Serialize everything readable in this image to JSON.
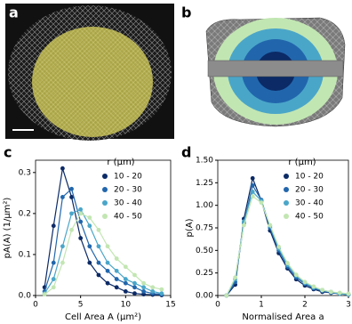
{
  "image_panels": [
    {
      "label": "a"
    },
    {
      "label": "b"
    }
  ],
  "chart_data": [
    {
      "type": "line",
      "panel_label": "c",
      "x_label": "Cell Area A (μm²)",
      "y_label": "pA(A) (1/μm²)",
      "legend_title": "r (μm)",
      "x": [
        1,
        2,
        3,
        4,
        5,
        6,
        7,
        8,
        9,
        10,
        11,
        12,
        13,
        14
      ],
      "xlim": [
        0,
        15
      ],
      "xticks": [
        0,
        5,
        10,
        15
      ],
      "ylim": [
        0,
        0.33
      ],
      "yticks": [
        {
          "value": 0,
          "label": "0.0"
        },
        0.1,
        0.2,
        0.3
      ],
      "series": [
        {
          "name": "10 - 20",
          "color": "#0b2a66",
          "values": [
            0.02,
            0.17,
            0.31,
            0.24,
            0.14,
            0.08,
            0.05,
            0.03,
            0.02,
            0.01,
            0.005,
            0.003,
            0.002,
            0.001
          ]
        },
        {
          "name": "20 - 30",
          "color": "#2166ac",
          "values": [
            0.01,
            0.08,
            0.24,
            0.26,
            0.18,
            0.12,
            0.08,
            0.06,
            0.04,
            0.03,
            0.02,
            0.01,
            0.005,
            0.003
          ]
        },
        {
          "name": "30 - 40",
          "color": "#4aa6c9",
          "values": [
            0.005,
            0.04,
            0.12,
            0.2,
            0.21,
            0.17,
            0.12,
            0.08,
            0.06,
            0.04,
            0.03,
            0.02,
            0.01,
            0.005
          ]
        },
        {
          "name": "40 - 50",
          "color": "#c2e6b2",
          "values": [
            0.003,
            0.02,
            0.08,
            0.16,
            0.2,
            0.19,
            0.16,
            0.12,
            0.09,
            0.07,
            0.05,
            0.03,
            0.02,
            0.015
          ]
        }
      ]
    },
    {
      "type": "line",
      "panel_label": "d",
      "x_label": "Normalised Area a",
      "y_label": "p(A)",
      "legend_title": "r (μm)",
      "x": [
        0.2,
        0.4,
        0.6,
        0.8,
        1.0,
        1.2,
        1.4,
        1.6,
        1.8,
        2.0,
        2.2,
        2.4,
        2.6,
        2.8,
        3.0
      ],
      "xlim": [
        0,
        3
      ],
      "xticks": [
        0,
        1,
        2,
        3
      ],
      "ylim": [
        0,
        1.5
      ],
      "yticks": [
        {
          "value": 0,
          "label": "0.00"
        },
        0.25,
        {
          "value": 0.5,
          "label": "0.50"
        },
        0.75,
        {
          "value": 1,
          "label": "1.00"
        },
        1.25,
        {
          "value": 1.5,
          "label": "1.50"
        }
      ],
      "series": [
        {
          "name": "10 - 20",
          "color": "#0b2a66",
          "values": [
            0.0,
            0.12,
            0.85,
            1.3,
            1.05,
            0.72,
            0.47,
            0.3,
            0.18,
            0.11,
            0.07,
            0.04,
            0.03,
            0.02,
            0.01
          ]
        },
        {
          "name": "20 - 30",
          "color": "#2166ac",
          "values": [
            0.0,
            0.15,
            0.8,
            1.22,
            1.06,
            0.75,
            0.5,
            0.32,
            0.2,
            0.13,
            0.08,
            0.05,
            0.03,
            0.02,
            0.01
          ]
        },
        {
          "name": "30 - 40",
          "color": "#4aa6c9",
          "values": [
            0.0,
            0.18,
            0.82,
            1.15,
            1.05,
            0.77,
            0.52,
            0.34,
            0.22,
            0.14,
            0.09,
            0.06,
            0.04,
            0.02,
            0.01
          ]
        },
        {
          "name": "40 - 50",
          "color": "#c2e6b2",
          "values": [
            0.0,
            0.2,
            0.78,
            1.1,
            1.03,
            0.78,
            0.54,
            0.36,
            0.23,
            0.15,
            0.1,
            0.06,
            0.04,
            0.03,
            0.02
          ]
        }
      ]
    }
  ]
}
